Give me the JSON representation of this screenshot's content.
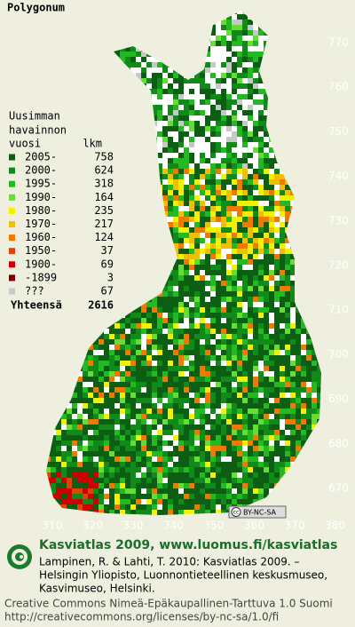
{
  "title": "Polygonum",
  "legend": {
    "heading": [
      "Uusimman",
      "havainnon"
    ],
    "col_year": "vuosi",
    "col_count": "lkm",
    "rows": [
      {
        "label": "2005-",
        "count": 758,
        "color": "#0b5e12"
      },
      {
        "label": "2000-",
        "count": 624,
        "color": "#108a18"
      },
      {
        "label": "1995-",
        "count": 318,
        "color": "#22b922"
      },
      {
        "label": "1990-",
        "count": 164,
        "color": "#66dd33"
      },
      {
        "label": "1980-",
        "count": 235,
        "color": "#f2f200"
      },
      {
        "label": "1970-",
        "count": 217,
        "color": "#f2bf00"
      },
      {
        "label": "1960-",
        "count": 124,
        "color": "#f07a00"
      },
      {
        "label": "1950-",
        "count": 37,
        "color": "#e04400"
      },
      {
        "label": "1900-",
        "count": 69,
        "color": "#cc0000"
      },
      {
        "label": "-1899",
        "count": 3,
        "color": "#7a0000"
      },
      {
        "label": "???",
        "count": 67,
        "color": "#c8c8c8"
      }
    ],
    "total_label": "Yhteensä",
    "total": 2616
  },
  "axes": {
    "y_ticks": [
      770,
      760,
      750,
      740,
      730,
      720,
      710,
      700,
      690,
      680,
      670
    ],
    "x_ticks": [
      310,
      320,
      330,
      340,
      350,
      360,
      370,
      380
    ]
  },
  "badge": {
    "cc": "cc",
    "license": "BY-NC-SA"
  },
  "footer": {
    "site": "Kasviatlas 2009, www.luomus.fi/kasviatlas",
    "citation": [
      "Lampinen, R. & Lahti, T. 2010: Kasviatlas 2009. –",
      "Helsingin Yliopisto, Luonnontieteellinen keskusmuseo,",
      "Kasvimuseo, Helsinki."
    ],
    "license": [
      "Creative Commons Nimeä-Epäkaupallinen-Tarttuva 1.0 Suomi",
      "http://creativecommons.org/licenses/by-nc-sa/1.0/fi"
    ]
  }
}
